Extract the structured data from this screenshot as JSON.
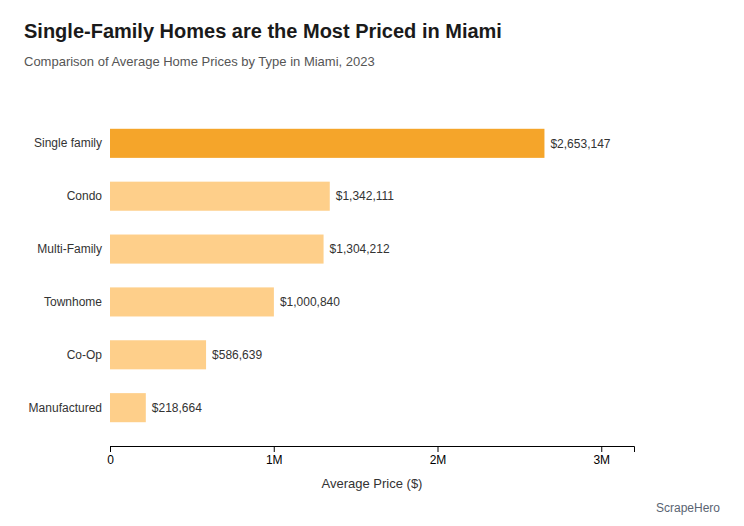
{
  "chart_data": {
    "type": "bar",
    "orientation": "horizontal",
    "title": "Single-Family Homes are the Most Priced in Miami",
    "subtitle": "Comparison of Average Home Prices by Type in Miami, 2023",
    "xlabel": "Average Price ($)",
    "categories": [
      "Single family",
      "Condo",
      "Multi-Family",
      "Townhome",
      "Co-Op",
      "Manufactured"
    ],
    "values": [
      2653147,
      1342111,
      1304212,
      1000840,
      586639,
      218664
    ],
    "value_labels": [
      "$2,653,147",
      "$1,342,111",
      "$1,304,212",
      "$1,000,840",
      "$586,639",
      "$218,664"
    ],
    "data_labels": true,
    "colors": [
      "#F5A52A",
      "#FECF8A",
      "#FECF8A",
      "#FECF8A",
      "#FECF8A",
      "#FECF8A"
    ],
    "xlim": [
      0,
      3200000
    ],
    "xticks": [
      0,
      {
        "value": 1000000,
        "label": "1M"
      },
      {
        "value": 2000000,
        "label": "2M"
      },
      {
        "value": 3000000,
        "label": "3M"
      }
    ],
    "grid": false,
    "annotations": [
      "ScrapeHero"
    ]
  }
}
